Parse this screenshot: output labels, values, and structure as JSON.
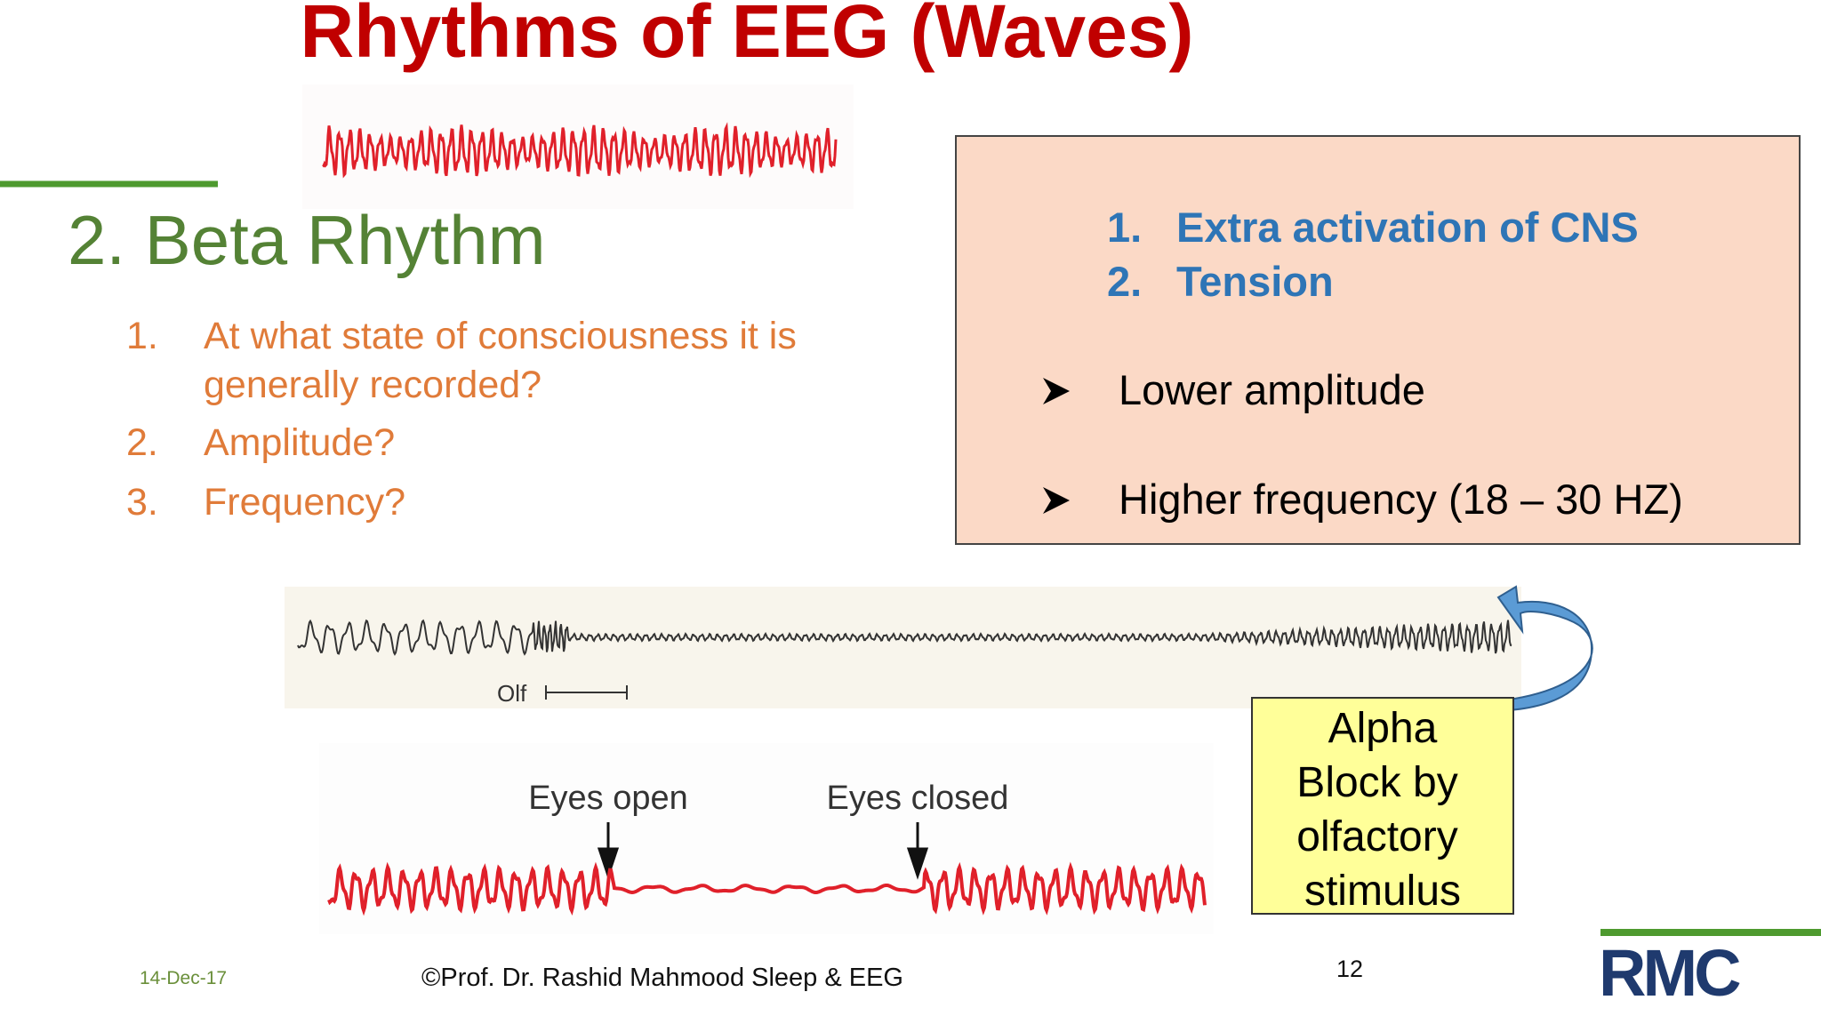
{
  "title": "Rhythms of EEG (Waves)",
  "heading": "2. Beta Rhythm",
  "questions": [
    {
      "number": "1.",
      "lines": [
        "At what state of consciousness it is",
        "generally recorded?"
      ]
    },
    {
      "number": "2.",
      "lines": [
        "Amplitude?"
      ]
    },
    {
      "number": "3.",
      "lines": [
        "Frequency?"
      ]
    }
  ],
  "answer_box": {
    "numbered": [
      {
        "number": "1.",
        "text": "Extra activation of CNS"
      },
      {
        "number": "2.",
        "text": "Tension"
      }
    ],
    "bullets": [
      "Lower amplitude",
      "Higher frequency (18 – 30 HZ)"
    ]
  },
  "eeg_labels": {
    "olfactory": "Olf",
    "eyes_open": "Eyes open",
    "eyes_closed": "Eyes closed"
  },
  "callout": [
    "Alpha",
    "Block by",
    "olfactory",
    "stimulus"
  ],
  "footer": {
    "date": "14-Dec-17",
    "credit": "©Prof. Dr. Rashid Mahmood  Sleep & EEG",
    "page": "12",
    "logo": "RMC"
  }
}
